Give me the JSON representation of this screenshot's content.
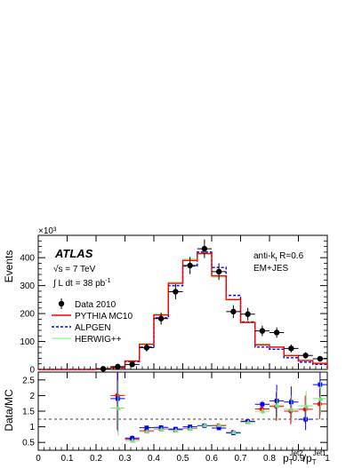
{
  "chart_data": [
    {
      "type": "line",
      "panel": "main",
      "ylabel": "Events",
      "yexp": "×10³",
      "ylim": [
        0,
        480
      ],
      "xlim": [
        0,
        1
      ],
      "yticks": [
        0,
        100,
        200,
        300,
        400
      ],
      "ytick_labels": [
        "0",
        "100",
        "200",
        "300",
        "400"
      ],
      "annotations": {
        "atlas": "ATLAS",
        "sqrt_s_prefix": "√s = 7 TeV",
        "lumi_text": "∫ L dt = 38 pb",
        "lumi_exp": "-1",
        "algo_text": "anti-k",
        "algo_sub": "t",
        "algo_tail": " R=0.6",
        "calib": "EM+JES"
      },
      "legend_position": "left",
      "bin_edges": [
        0.2,
        0.25,
        0.3,
        0.35,
        0.4,
        0.45,
        0.5,
        0.55,
        0.6,
        0.65,
        0.7,
        0.75,
        0.8,
        0.85,
        0.9,
        0.95,
        1.0
      ],
      "series": [
        {
          "name": "Data 2010",
          "style": "points",
          "color": "#000000",
          "x": [
            0.225,
            0.275,
            0.325,
            0.375,
            0.425,
            0.475,
            0.525,
            0.575,
            0.625,
            0.675,
            0.725,
            0.775,
            0.825,
            0.875,
            0.925,
            0.975
          ],
          "y": [
            2,
            10,
            18,
            78,
            182,
            278,
            372,
            432,
            350,
            207,
            198,
            138,
            132,
            75,
            50,
            38
          ]
        },
        {
          "name": "PYTHIA MC10",
          "style": "step",
          "color": "#ff0000",
          "y": [
            2,
            6,
            30,
            90,
            195,
            308,
            390,
            415,
            335,
            250,
            168,
            88,
            80,
            50,
            32,
            22
          ]
        },
        {
          "name": "ALPGEN",
          "style": "step-dashed",
          "color": "#0000ff",
          "y": [
            2,
            5,
            28,
            80,
            185,
            300,
            370,
            420,
            365,
            265,
            170,
            80,
            72,
            42,
            26,
            18
          ]
        },
        {
          "name": "HERWIG++",
          "style": "step",
          "color": "#99ff99",
          "y": [
            2,
            7,
            32,
            92,
            198,
            312,
            395,
            412,
            330,
            248,
            172,
            92,
            78,
            48,
            30,
            20
          ]
        }
      ]
    },
    {
      "type": "scatter",
      "panel": "ratio",
      "ylabel": "Data/MC",
      "ylim": [
        0.25,
        2.75
      ],
      "xlim": [
        0,
        1
      ],
      "xlabel_main": "p",
      "xlabel_sub": "T",
      "xlabel_sup": "Jet2",
      "xlabel_slash": "/p",
      "xlabel_sub2": "T",
      "xlabel_sup2": "Jet1",
      "yticks": [
        0.5,
        1,
        1.5,
        2,
        2.5
      ],
      "ytick_labels": [
        "0.5",
        "1",
        "1.5",
        "2",
        "2.5"
      ],
      "xticks": [
        0,
        0.1,
        0.2,
        0.3,
        0.4,
        0.5,
        0.6,
        0.7,
        0.8,
        0.9,
        1
      ],
      "xtick_labels": [
        "0",
        "0.1",
        "0.2",
        "0.3",
        "0.4",
        "0.5",
        "0.6",
        "0.7",
        "0.8",
        "0.9",
        "1"
      ],
      "x": [
        0.275,
        0.325,
        0.375,
        0.425,
        0.475,
        0.525,
        0.575,
        0.625,
        0.675,
        0.725,
        0.775,
        0.825,
        0.875,
        0.925,
        0.975
      ],
      "series": [
        {
          "name": "Data/PYTHIA MC10",
          "color": "#ff0000",
          "y": [
            2.0,
            0.6,
            0.87,
            0.93,
            0.9,
            0.95,
            1.04,
            1.04,
            0.83,
            1.18,
            1.57,
            1.65,
            1.5,
            1.56,
            1.73
          ]
        },
        {
          "name": "Data/ALPGEN",
          "color": "#0000ff",
          "y": [
            1.9,
            0.64,
            0.97,
            0.98,
            0.93,
            1.0,
            1.03,
            0.96,
            0.8,
            1.17,
            1.72,
            1.83,
            1.79,
            1.24,
            2.35
          ]
        },
        {
          "name": "Data/HERWIG++",
          "color": "#7fdd7f",
          "y": [
            1.6,
            0.56,
            0.85,
            0.92,
            0.89,
            0.94,
            1.05,
            1.06,
            0.83,
            1.15,
            1.5,
            1.69,
            1.56,
            1.67,
            1.9
          ]
        }
      ]
    }
  ]
}
